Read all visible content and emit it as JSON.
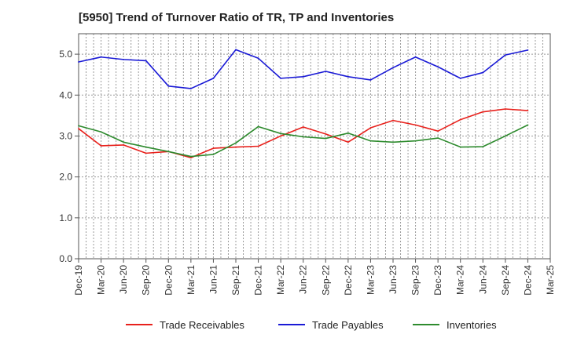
{
  "chart_data": {
    "type": "line",
    "title": "[5950]  Trend of Turnover Ratio of TR, TP and Inventories",
    "xlabel": "",
    "ylabel": "",
    "ylim": [
      0,
      5.5
    ],
    "y_ticks": [
      0.0,
      1.0,
      2.0,
      3.0,
      4.0,
      5.0
    ],
    "grid": true,
    "legend_position": "bottom",
    "x": [
      "Dec-19",
      "Mar-20",
      "Jun-20",
      "Sep-20",
      "Dec-20",
      "Mar-21",
      "Jun-21",
      "Sep-21",
      "Dec-21",
      "Mar-22",
      "Jun-22",
      "Sep-22",
      "Dec-22",
      "Mar-23",
      "Jun-23",
      "Sep-23",
      "Dec-23",
      "Mar-24",
      "Jun-24",
      "Sep-24",
      "Dec-24"
    ],
    "x_tick_labels": [
      "Dec-19",
      "Mar-20",
      "Jun-20",
      "Sep-20",
      "Dec-20",
      "Mar-21",
      "Jun-21",
      "Sep-21",
      "Dec-21",
      "Mar-22",
      "Jun-22",
      "Sep-22",
      "Dec-22",
      "Mar-23",
      "Jun-23",
      "Sep-23",
      "Dec-23",
      "Mar-24",
      "Jun-24",
      "Sep-24",
      "Dec-24",
      "Mar-25"
    ],
    "series": [
      {
        "name": "Trade Receivables",
        "color": "#e8211c",
        "values": [
          3.18,
          2.76,
          2.78,
          2.58,
          2.62,
          2.47,
          2.7,
          2.73,
          2.75,
          3.0,
          3.22,
          3.05,
          2.85,
          3.2,
          3.38,
          3.27,
          3.12,
          3.4,
          3.59,
          3.66,
          3.62
        ]
      },
      {
        "name": "Trade Payables",
        "color": "#1a1ad6",
        "values": [
          4.81,
          4.93,
          4.87,
          4.84,
          4.22,
          4.16,
          4.41,
          5.11,
          4.9,
          4.41,
          4.45,
          4.58,
          4.45,
          4.37,
          4.67,
          4.93,
          4.69,
          4.41,
          4.55,
          4.98,
          5.1
        ]
      },
      {
        "name": "Inventories",
        "color": "#2e8b2e",
        "values": [
          3.25,
          3.1,
          2.85,
          2.73,
          2.62,
          2.5,
          2.55,
          2.83,
          3.23,
          3.06,
          2.98,
          2.94,
          3.07,
          2.88,
          2.85,
          2.88,
          2.95,
          2.73,
          2.74,
          3.0,
          3.27
        ]
      }
    ]
  }
}
